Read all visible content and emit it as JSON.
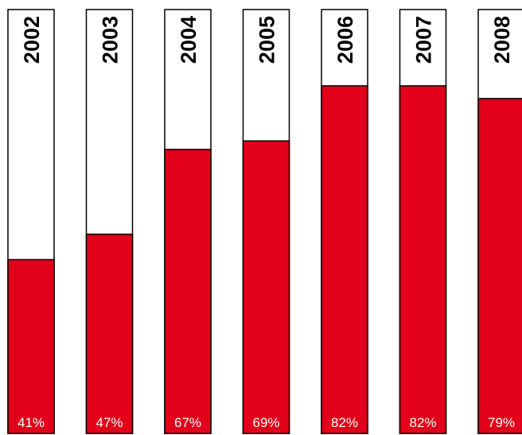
{
  "chart_data": {
    "type": "bar",
    "categories": [
      "2002",
      "2003",
      "2004",
      "2005",
      "2006",
      "2007",
      "2008"
    ],
    "values": [
      41,
      47,
      67,
      69,
      82,
      82,
      79
    ],
    "value_labels": [
      "41%",
      "47%",
      "67%",
      "69%",
      "82%",
      "82%",
      "79%"
    ],
    "ylim": [
      0,
      100
    ],
    "grid": false,
    "legend": "none",
    "title": "",
    "xlabel": "",
    "ylabel": ""
  },
  "colors": {
    "bar_fill": "#e2001a",
    "track_fill": "#ffffff",
    "outline": "#000000",
    "value_text": "#ffffff",
    "year_text": "#000000"
  }
}
